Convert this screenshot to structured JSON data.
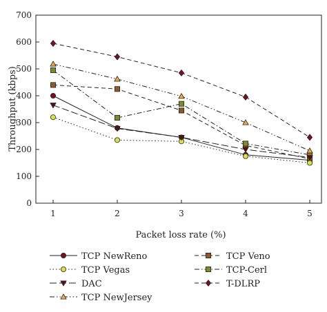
{
  "chart_data": {
    "type": "line",
    "title": "",
    "xlabel": "Packet loss rate (%)",
    "ylabel": "Throughput (kbps)",
    "x": [
      1,
      2,
      3,
      4,
      5
    ],
    "x_ticks": [
      "1",
      "2",
      "3",
      "4",
      "5"
    ],
    "xlim": [
      1,
      5
    ],
    "ylim": [
      0,
      700
    ],
    "y_ticks": [
      "0",
      "100",
      "200",
      "300",
      "400",
      "500",
      "600",
      "700"
    ],
    "grid": false,
    "legend_position": "below",
    "series": [
      {
        "name": "TCP NewReno",
        "values": [
          400,
          280,
          245,
          180,
          160
        ],
        "color": "#222222",
        "marker_color": "#7a1020",
        "marker": "circle",
        "dash": "solid"
      },
      {
        "name": "TCP Veno",
        "values": [
          440,
          425,
          345,
          215,
          165
        ],
        "color": "#222222",
        "marker_color": "#8a5a2b",
        "marker": "square",
        "dash": "dash"
      },
      {
        "name": "TCP Vegas",
        "values": [
          320,
          235,
          230,
          175,
          150
        ],
        "color": "#222222",
        "marker_color": "#d8e24a",
        "marker": "circle",
        "dash": "dot"
      },
      {
        "name": "TCP-Cerl",
        "values": [
          495,
          318,
          370,
          222,
          180
        ],
        "color": "#222222",
        "marker_color": "#7f8a2a",
        "marker": "square",
        "dash": "dashdot"
      },
      {
        "name": "DAC",
        "values": [
          365,
          278,
          245,
          200,
          170
        ],
        "color": "#222222",
        "marker_color": "#5a0f12",
        "marker": "triangle-down",
        "dash": "longdash"
      },
      {
        "name": "T-DLRP",
        "values": [
          595,
          545,
          485,
          395,
          245
        ],
        "color": "#222222",
        "marker_color": "#7a1020",
        "marker": "diamond",
        "dash": "dash"
      },
      {
        "name": "TCP NewJersey",
        "values": [
          518,
          462,
          398,
          300,
          195
        ],
        "color": "#222222",
        "marker_color": "#f0a848",
        "marker": "triangle-up",
        "dash": "dashdotdot"
      }
    ]
  }
}
